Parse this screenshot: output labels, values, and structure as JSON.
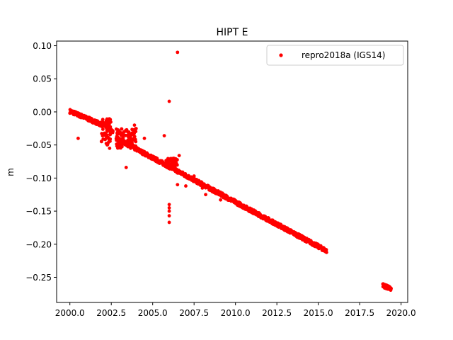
{
  "chart_data": {
    "type": "scatter",
    "title": "HIPT E",
    "xlabel": "",
    "ylabel": "m",
    "xlim": [
      1999.2,
      2020.4
    ],
    "ylim": [
      -0.288,
      0.107
    ],
    "xticks": [
      2000.0,
      2002.5,
      2005.0,
      2007.5,
      2010.0,
      2012.5,
      2015.0,
      2017.5,
      2020.0
    ],
    "xtick_labels": [
      "2000.0",
      "2002.5",
      "2005.0",
      "2007.5",
      "2010.0",
      "2012.5",
      "2015.0",
      "2017.5",
      "2020.0"
    ],
    "yticks": [
      0.1,
      0.05,
      0.0,
      -0.05,
      -0.1,
      -0.15,
      -0.2,
      -0.25
    ],
    "ytick_labels": [
      "0.10",
      "0.05",
      "0.00",
      "−0.05",
      "−0.10",
      "−0.15",
      "−0.20",
      "−0.25"
    ],
    "grid": false,
    "legend_position": "top-right",
    "marker_color": "#ff0000",
    "series": [
      {
        "name": "repro2018a (IGS14)",
        "color": "#ff0000",
        "trend_segments": [
          {
            "x": [
              2000.0,
              2002.0
            ],
            "y": [
              0.001,
              -0.02
            ]
          },
          {
            "x": [
              2002.0,
              2002.6
            ],
            "y": [
              -0.018,
              -0.03
            ]
          },
          {
            "x": [
              2002.8,
              2015.5
            ],
            "y": [
              -0.04,
              -0.21
            ]
          },
          {
            "x": [
              2018.9,
              2019.4
            ],
            "y": [
              -0.262,
              -0.268
            ]
          }
        ],
        "scatter_bands": [
          {
            "x": [
              2001.9,
              2002.5
            ],
            "y": [
              -0.05,
              -0.01
            ]
          },
          {
            "x": [
              2002.8,
              2004.0
            ],
            "y": [
              -0.055,
              -0.025
            ]
          },
          {
            "x": [
              2005.8,
              2006.5
            ],
            "y": [
              -0.085,
              -0.07
            ]
          }
        ],
        "outliers": [
          {
            "x": 2000.5,
            "y": -0.04
          },
          {
            "x": 2002.4,
            "y": -0.055
          },
          {
            "x": 2003.4,
            "y": -0.084
          },
          {
            "x": 2003.9,
            "y": -0.02
          },
          {
            "x": 2004.5,
            "y": -0.04
          },
          {
            "x": 2005.7,
            "y": -0.036
          },
          {
            "x": 2006.0,
            "y": 0.016
          },
          {
            "x": 2006.0,
            "y": -0.14
          },
          {
            "x": 2006.0,
            "y": -0.145
          },
          {
            "x": 2006.0,
            "y": -0.15
          },
          {
            "x": 2006.0,
            "y": -0.157
          },
          {
            "x": 2006.0,
            "y": -0.167
          },
          {
            "x": 2006.5,
            "y": 0.09
          },
          {
            "x": 2006.5,
            "y": -0.11
          },
          {
            "x": 2006.6,
            "y": -0.066
          },
          {
            "x": 2007.0,
            "y": -0.112
          },
          {
            "x": 2007.5,
            "y": -0.097
          },
          {
            "x": 2008.0,
            "y": -0.115
          },
          {
            "x": 2008.2,
            "y": -0.125
          },
          {
            "x": 2009.1,
            "y": -0.133
          }
        ]
      }
    ]
  }
}
